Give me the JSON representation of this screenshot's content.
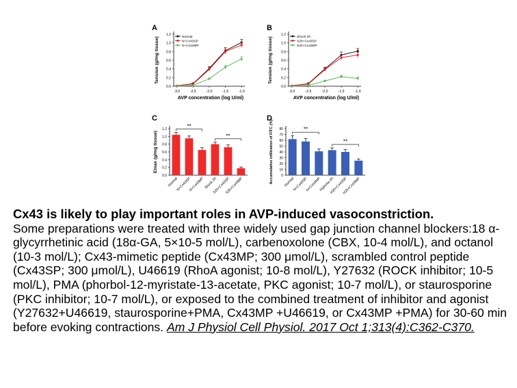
{
  "figure": {
    "panels": [
      {
        "letter": "A"
      },
      {
        "letter": "B"
      },
      {
        "letter": "C"
      },
      {
        "letter": "D"
      }
    ]
  },
  "chart_data": [
    {
      "type": "line",
      "panel": "A",
      "ylabel": "Tension (g/mg tissue)",
      "xlabel": "AVP concentration (log U/ml)",
      "x": [
        -3.0,
        -2.5,
        -2.0,
        -1.5,
        -1.0
      ],
      "x_tick_labels": [
        "-3.0",
        "-2.5",
        "-2.0",
        "-1.5",
        "-1.0"
      ],
      "y_tick_labels": [
        "0.0",
        "0.2",
        "0.4",
        "0.6",
        "0.8",
        "1.0",
        "1.2"
      ],
      "ylim": [
        0,
        1.2
      ],
      "legend_position": "top-left",
      "series": [
        {
          "name": "Normal",
          "color": "#111111",
          "values": [
            0.01,
            0.06,
            0.41,
            0.82,
            1.01
          ],
          "errors": [
            0.01,
            0.02,
            0.04,
            0.07,
            0.07
          ]
        },
        {
          "name": "N+Cx43SP",
          "color": "#e02020",
          "values": [
            0.01,
            0.05,
            0.39,
            0.8,
            0.95
          ],
          "errors": [
            0.01,
            0.02,
            0.03,
            0.06,
            0.06
          ]
        },
        {
          "name": "N+Cx43MP",
          "color": "#5cb85c",
          "values": [
            0.0,
            0.02,
            0.17,
            0.44,
            0.63
          ],
          "errors": [
            0.01,
            0.01,
            0.02,
            0.04,
            0.05
          ]
        }
      ]
    },
    {
      "type": "line",
      "panel": "B",
      "ylabel": "Tension (g/mg tissue)",
      "xlabel": "AVP concentration (log U/ml)",
      "x": [
        -3.0,
        -2.5,
        -2.0,
        -1.5,
        -1.0
      ],
      "x_tick_labels": [
        "-3.0",
        "-2.5",
        "-2.0",
        "-1.5",
        "-1.0"
      ],
      "y_tick_labels": [
        "0.0",
        "0.2",
        "0.4",
        "0.6",
        "0.8",
        "1.0",
        "1.2"
      ],
      "ylim": [
        0,
        1.2
      ],
      "legend_position": "top-left",
      "series": [
        {
          "name": "Shock 2h",
          "color": "#111111",
          "values": [
            0.01,
            0.06,
            0.4,
            0.72,
            0.81
          ],
          "errors": [
            0.01,
            0.02,
            0.04,
            0.07,
            0.06
          ]
        },
        {
          "name": "S2h+Cx43SP",
          "color": "#e02020",
          "values": [
            0.01,
            0.05,
            0.38,
            0.66,
            0.72
          ],
          "errors": [
            0.01,
            0.02,
            0.03,
            0.06,
            0.06
          ]
        },
        {
          "name": "S2h+Cx43MP",
          "color": "#5cb85c",
          "values": [
            0.0,
            0.02,
            0.12,
            0.22,
            0.18
          ],
          "errors": [
            0.01,
            0.01,
            0.02,
            0.03,
            0.03
          ]
        }
      ]
    },
    {
      "type": "bar",
      "panel": "C",
      "ylabel": "Emax (g/mg tissue)",
      "categories": [
        "Normal",
        "N+Cx43SP",
        "N+Cx43MP",
        "Shock 2h",
        "S2h+Cx43SP",
        "S2h+Cx43MP"
      ],
      "values": [
        1.04,
        0.95,
        0.65,
        0.8,
        0.72,
        0.18
      ],
      "errors": [
        0.06,
        0.06,
        0.06,
        0.05,
        0.06,
        0.03
      ],
      "color": "#ee2a2a",
      "y_tick_labels": [
        "0.0",
        "0.2",
        "0.4",
        "0.6",
        "0.8",
        "1.0",
        "1.2"
      ],
      "ylim": [
        0,
        1.2
      ],
      "annotations": [
        {
          "text": "**",
          "from": 0,
          "to": 2
        },
        {
          "text": "**",
          "from": 3,
          "to": 5
        }
      ]
    },
    {
      "type": "bar",
      "panel": "D",
      "ylabel": "Accumulative infiltration of FITC (%)",
      "categories": [
        "Normal",
        "N+Cx43SP",
        "N+Cx43MP",
        "Hypoxia 2h",
        "H2h+Cx43SP",
        "H2h+Cx43MP"
      ],
      "values": [
        62,
        58,
        41,
        43,
        40,
        25
      ],
      "errors": [
        6,
        5,
        4,
        4,
        4,
        3
      ],
      "color": "#3b5fb5",
      "y_tick_labels": [
        "0",
        "10",
        "20",
        "30",
        "40",
        "50",
        "60",
        "70",
        "80"
      ],
      "ylim": [
        0,
        80
      ],
      "annotations": [
        {
          "text": "**",
          "from": 0,
          "to": 2
        },
        {
          "text": "**",
          "from": 3,
          "to": 5
        }
      ]
    }
  ],
  "caption": {
    "title": "Cx43 is likely to play important roles in AVP-induced vasoconstriction.",
    "body": "Some preparations were treated with three widely used gap junction channel blockers:18 α-glycyrrhetinic acid (18α-GA, 5×10-5 mol/L), carbenoxolone (CBX, 10-4 mol/L), and octanol (10-3 mol/L); Cx43-mimetic peptide (Cx43MP; 300 μmol/L), scrambled control peptide (Cx43SP; 300 μmol/L), U46619 (RhoA agonist; 10-8 mol/L), Y27632 (ROCK inhibitor; 10-5 mol/L), PMA (phorbol-12-myristate-13-acetate, PKC agonist; 10-7 mol/L), or staurosporine (PKC inhibitor; 10-7 mol/L), or exposed to the combined treatment of inhibitor and agonist (Y27632+U46619, staurosporine+PMA, Cx43MP +U46619, or Cx43MP +PMA) for 30-60 min before evoking contractions.",
    "citation": "Am J Physiol Cell Physiol. 2017 Oct 1;313(4):C362-C370."
  }
}
